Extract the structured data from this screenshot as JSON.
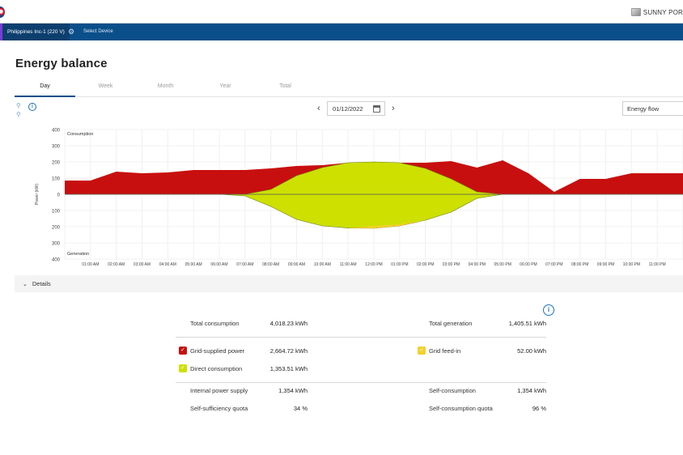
{
  "header": {
    "brand_text": "SUNNY POR",
    "plant_name": "Philippines Inc-1 (220 V)",
    "select_device": "Select Device"
  },
  "page": {
    "title": "Energy balance",
    "tabs": [
      "Day",
      "Week",
      "Month",
      "Year",
      "Total"
    ],
    "active_tab": "Day",
    "date": "01/12/2022",
    "view_select": "Energy flow",
    "details_label": "Details"
  },
  "chart_data": {
    "type": "area",
    "ylabel": "Power (kW)",
    "top_label": "Consumption",
    "bottom_label": "Generation",
    "y_ticks": [
      "400",
      "300",
      "200",
      "100",
      "0",
      "100",
      "200",
      "300",
      "400"
    ],
    "ylim": [
      -400,
      400
    ],
    "x_ticks": [
      "01:00 AM",
      "02:00 AM",
      "03:00 AM",
      "04:00 AM",
      "05:00 AM",
      "06:00 AM",
      "07:00 AM",
      "08:00 AM",
      "09:00 AM",
      "10:00 AM",
      "11:00 AM",
      "12:00 PM",
      "01:00 PM",
      "02:00 PM",
      "03:00 PM",
      "04:00 PM",
      "05:00 PM",
      "06:00 PM",
      "07:00 PM",
      "08:00 PM",
      "09:00 PM",
      "10:00 PM",
      "11:00 PM"
    ],
    "x_hours": [
      0,
      1,
      2,
      3,
      4,
      5,
      6,
      7,
      8,
      9,
      10,
      11,
      12,
      13,
      14,
      15,
      16,
      17,
      18,
      19,
      20,
      21,
      22,
      23,
      24
    ],
    "series": [
      {
        "name": "Grid-supplied power",
        "color": "#c80f0f",
        "values": [
          85,
          85,
          140,
          130,
          135,
          150,
          150,
          150,
          130,
          60,
          15,
          0,
          0,
          0,
          35,
          110,
          150,
          210,
          130,
          15,
          95,
          95,
          130,
          130,
          130
        ]
      },
      {
        "name": "Direct consumption",
        "color": "#cde000",
        "values": [
          0,
          0,
          0,
          0,
          0,
          0,
          0,
          0,
          30,
          115,
          165,
          195,
          200,
          195,
          160,
          95,
          15,
          0,
          0,
          0,
          0,
          0,
          0,
          0,
          0
        ]
      },
      {
        "name": "Grid feed-in",
        "color": "#f2d12a",
        "values": [
          0,
          0,
          0,
          0,
          0,
          0,
          0,
          0,
          0,
          0,
          0,
          0,
          15,
          10,
          0,
          0,
          0,
          0,
          0,
          0,
          0,
          0,
          0,
          0,
          0
        ]
      },
      {
        "name": "Generation",
        "color": "#cde000",
        "values": [
          0,
          0,
          0,
          0,
          0,
          0,
          0,
          10,
          75,
          155,
          195,
          208,
          210,
          195,
          160,
          110,
          25,
          0,
          0,
          0,
          0,
          0,
          0,
          0,
          0
        ]
      }
    ]
  },
  "summary": {
    "left": [
      {
        "label": "Total consumption",
        "value": "4,018.23 kWh"
      },
      {
        "label": "Grid-supplied power",
        "value": "2,664.72 kWh",
        "swatch": "#c80f0f"
      },
      {
        "label": "Direct consumption",
        "value": "1,353.51 kWh",
        "swatch": "#cde000"
      },
      {
        "label": "Internal power supply",
        "value": "1,354 kWh"
      },
      {
        "label": "Self-sufficiency quota",
        "value": "34 %"
      }
    ],
    "right": [
      {
        "label": "Total generation",
        "value": "1,405.51 kWh"
      },
      {
        "label": "Grid feed-in",
        "value": "52.00 kWh",
        "swatch": "#f2d12a"
      },
      {
        "label": "Self-consumption",
        "value": "1,354 kWh"
      },
      {
        "label": "Self-consumption quota",
        "value": "96 %"
      }
    ]
  }
}
